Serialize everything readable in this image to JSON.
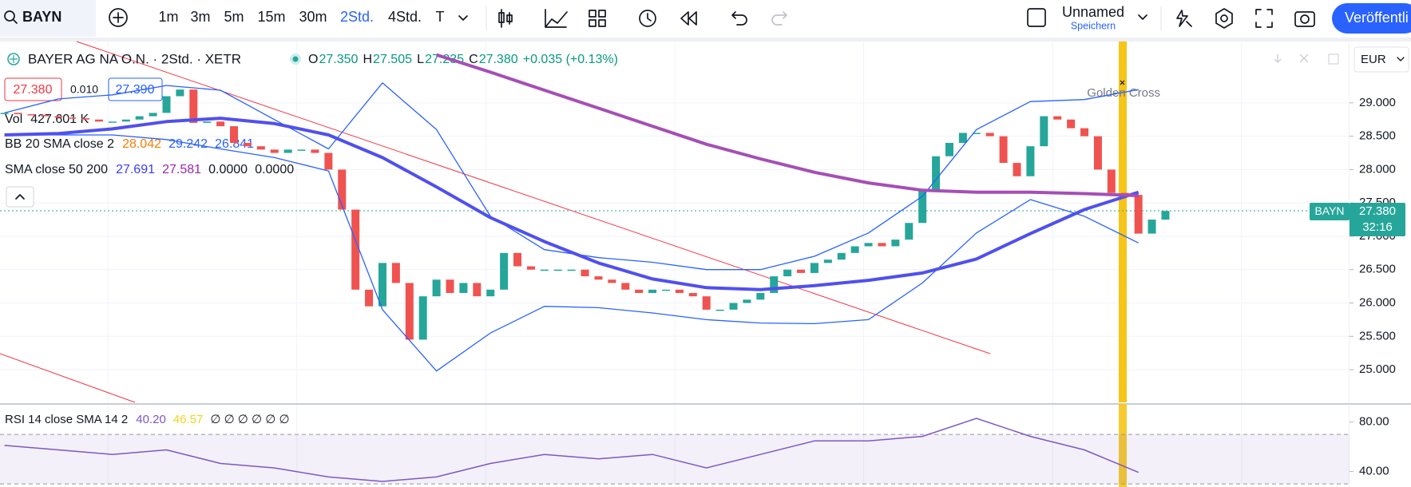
{
  "toolbar": {
    "symbol": "BAYN",
    "intervals": [
      "1m",
      "3m",
      "5m",
      "15m",
      "30m",
      "2Std.",
      "4Std.",
      "T"
    ],
    "active_interval": "2Std.",
    "layout_name": "Unnamed",
    "save": "Speichern",
    "publish": "Veröffentli"
  },
  "legend": {
    "title": "BAYER AG NA O.N. · 2Std. · XETR",
    "ohlc": [
      [
        "O",
        "27.350"
      ],
      [
        "H",
        "27.505"
      ],
      [
        "L",
        "27.235"
      ],
      [
        "C",
        "27.380"
      ]
    ],
    "change": "+0.035 (+0.13%)",
    "quote": {
      "bid": "27.380",
      "spread": "0.010",
      "ask": "27.390"
    },
    "indicators": [
      {
        "name": "Vol",
        "values": [
          "427.601 K"
        ],
        "colors": [
          "#131722"
        ]
      },
      {
        "name": "BB 20 SMA close 2",
        "values": [
          "28.042",
          "29.242",
          "26.841"
        ],
        "colors": [
          "#f57c00",
          "#2962ff",
          "#2962ff"
        ]
      },
      {
        "name": "SMA close 50 200",
        "values": [
          "27.691",
          "27.581",
          "0.0000",
          "0.0000"
        ],
        "colors": [
          "#3c3cf0",
          "#9c27b0",
          "#131722",
          "#131722"
        ]
      }
    ]
  },
  "currency": "EUR",
  "annotation": "Golden Cross",
  "price_tag": {
    "symbol": "BAYN",
    "price": "27.380",
    "countdown": "32:16"
  },
  "chart_data": [
    {
      "type": "candlestick",
      "closes": [
        28.85,
        28.83,
        28.82,
        28.8,
        28.78,
        28.77,
        28.75,
        28.72,
        28.72,
        28.75,
        28.8,
        28.85,
        29.1,
        29.2,
        28.7,
        28.72,
        28.65,
        28.4,
        28.35,
        28.3,
        28.25,
        28.3,
        28.3,
        28.25,
        28.0,
        27.4,
        26.2,
        25.95,
        26.6,
        26.3,
        25.45,
        26.1,
        26.35,
        26.15,
        26.3,
        26.1,
        26.2,
        26.75,
        26.55,
        26.5,
        26.5,
        26.5,
        26.5,
        26.4,
        26.35,
        26.3,
        26.2,
        26.15,
        26.2,
        26.2,
        26.15,
        26.1,
        25.9,
        25.9,
        26.0,
        26.05,
        26.15,
        26.4,
        26.5,
        26.45,
        26.6,
        26.65,
        26.75,
        26.85,
        26.9,
        26.85,
        26.95,
        27.2,
        27.7,
        28.2,
        28.4,
        28.55,
        28.55,
        28.5,
        28.1,
        27.9,
        28.35,
        28.8,
        28.75,
        28.62,
        28.5,
        28.0,
        27.65,
        27.62,
        27.04,
        27.25,
        27.38
      ],
      "up_color": "#26a69a",
      "down_color": "#ef5350",
      "overlays": [
        {
          "color": "#2962ff",
          "width": 1.3,
          "values": [
            28.85,
            29.06,
            29.12,
            29.26,
            29.19,
            28.75,
            28.31,
            29.3,
            28.6,
            27.3,
            26.8,
            26.68,
            26.61,
            26.5,
            26.5,
            26.7,
            27.05,
            27.6,
            28.6,
            29.02,
            29.05,
            29.2
          ]
        },
        {
          "color": "#2962ff",
          "width": 1.3,
          "values": [
            28.52,
            28.52,
            28.52,
            28.45,
            28.31,
            28.18,
            27.98,
            25.9,
            24.98,
            25.55,
            25.95,
            25.93,
            25.85,
            25.75,
            25.7,
            25.69,
            25.75,
            26.3,
            27.05,
            27.55,
            27.3,
            26.9
          ]
        },
        {
          "color": "#5050ee",
          "width": 4,
          "values": [
            28.52,
            28.54,
            28.61,
            28.72,
            28.77,
            28.69,
            28.52,
            28.18,
            27.74,
            27.28,
            26.92,
            26.6,
            26.36,
            26.23,
            26.2,
            26.26,
            26.34,
            26.45,
            26.66,
            27.04,
            27.4,
            27.66
          ]
        },
        {
          "color": "#a54fb5",
          "width": 4,
          "values": [
            null,
            null,
            null,
            null,
            null,
            null,
            null,
            null,
            29.72,
            29.46,
            29.19,
            28.92,
            28.65,
            28.38,
            28.16,
            27.96,
            27.8,
            27.69,
            27.66,
            27.66,
            27.64,
            27.61
          ]
        }
      ],
      "ylim": [
        24.51,
        29.92
      ],
      "yticks": [
        {
          "value": 29,
          "label": "29.000"
        },
        {
          "value": 28.5,
          "label": "28.500"
        },
        {
          "value": 28,
          "label": "28.000"
        },
        {
          "value": 27.5,
          "label": "27.500"
        },
        {
          "value": 27,
          "label": "27.000"
        },
        {
          "value": 26.5,
          "label": "26.500"
        },
        {
          "value": 26,
          "label": "26.000"
        },
        {
          "value": 25.5,
          "label": "25.500"
        },
        {
          "value": 25,
          "label": "25.000"
        }
      ],
      "grid": true
    },
    {
      "type": "line",
      "title": "RSI 14 close SMA 14 2",
      "legend_values": [
        "40.20",
        "46.57",
        "∅ ∅ ∅ ∅ ∅ ∅"
      ],
      "legend_colors": [
        "#7e57c2",
        "#f7d21e",
        "#131722"
      ],
      "values": [
        61.1,
        57.5,
        53.8,
        57.5,
        46.5,
        42.9,
        35.6,
        32.0,
        35.6,
        46.5,
        53.8,
        50.2,
        53.8,
        42.9,
        53.8,
        64.7,
        64.7,
        68.4,
        82.9,
        68.4,
        57.5,
        39.3
      ],
      "color": "#7e57c2",
      "bands": [
        70,
        30
      ],
      "ylim": [
        27.5,
        93.9
      ],
      "yticks": [
        {
          "value": 80,
          "label": "80.00"
        },
        {
          "value": 40,
          "label": "40.00"
        }
      ]
    }
  ]
}
